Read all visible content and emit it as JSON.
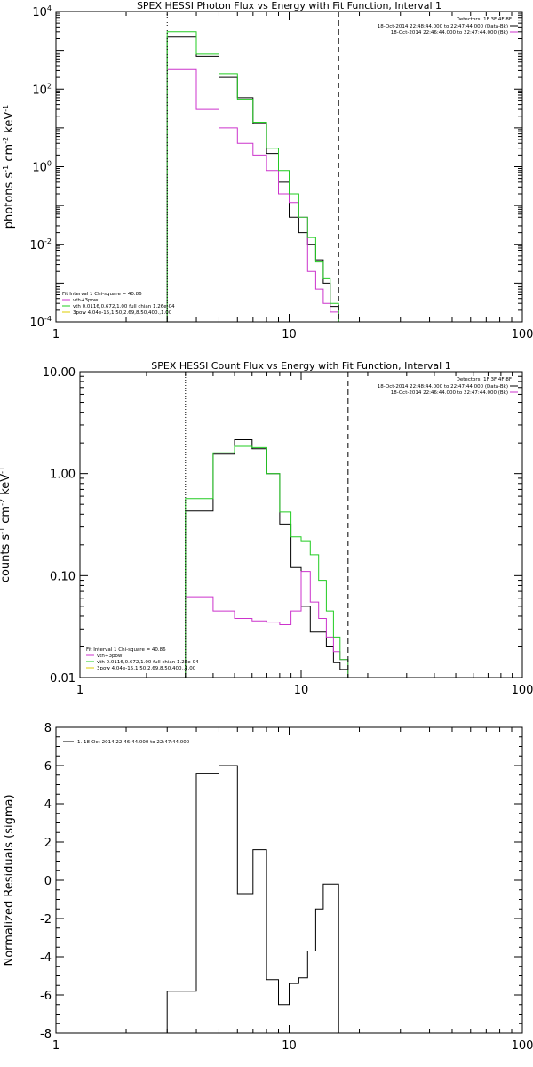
{
  "chart_data": [
    {
      "type": "line",
      "title": "SPEX HESSI Photon Flux vs Energy with Fit Function, Interval 1",
      "ylabel_parts": [
        "photons s",
        "-1",
        " cm",
        "-2",
        " keV",
        "-1"
      ],
      "xlabel": "",
      "xscale": "log",
      "yscale": "log",
      "xlim": [
        1,
        100
      ],
      "ylim": [
        0.0001,
        10000
      ],
      "xticks": [
        {
          "v": 1,
          "label": "1"
        },
        {
          "v": 10,
          "label": "10"
        },
        {
          "v": 100,
          "label": "100"
        }
      ],
      "yticks": [
        {
          "v": 0.0001,
          "base": "10",
          "exp": "-4"
        },
        {
          "v": 0.01,
          "base": "10",
          "exp": "-2"
        },
        {
          "v": 1,
          "base": "10",
          "exp": "0"
        },
        {
          "v": 100,
          "base": "10",
          "exp": "2"
        },
        {
          "v": 10000,
          "base": "10",
          "exp": "4"
        }
      ],
      "vlines": [
        {
          "x": 3.0,
          "style": "dotted"
        },
        {
          "x": 16.3,
          "style": "dashed"
        }
      ],
      "edges": [
        3.0,
        4.0,
        5.0,
        6.0,
        7.0,
        8.0,
        9.0,
        10.0,
        11.0,
        12.0,
        13.0,
        14.0,
        15.0,
        16.3
      ],
      "series": [
        {
          "name": "data",
          "color": "#000000",
          "values": [
            2200,
            700,
            200,
            60,
            13,
            2.2,
            0.4,
            0.05,
            0.02,
            0.01,
            0.004,
            0.001,
            0.00025
          ]
        },
        {
          "name": "vth+3pow",
          "color": "#cc33cc",
          "values": [
            320,
            30,
            10,
            4,
            2,
            0.8,
            0.2,
            0.12,
            0.05,
            0.002,
            0.0007,
            0.0003,
            0.00018
          ]
        },
        {
          "name": "vth",
          "color": "#22cc22",
          "values": [
            3000,
            800,
            250,
            55,
            14,
            3,
            0.8,
            0.2,
            0.05,
            0.015,
            0.0035,
            0.0013,
            0.0003
          ]
        }
      ],
      "legend_top": {
        "header": "Detectors: 1F 3F 4F 8F",
        "entries": [
          {
            "text": "18-Oct-2014 22:48:44.000 to 22:47:44.000 (Data-Bk)",
            "color": "#000000"
          },
          {
            "text": "18-Oct-2014 22:46:44.000 to 22:47:44.000 (Bk)",
            "color": "#cc33cc"
          }
        ]
      },
      "legend_bottom": {
        "header": "Fit Interval 1   Chi-square = 40.86",
        "entries": [
          {
            "text": "vth+3pow",
            "color": "#cc33cc"
          },
          {
            "text": "vth 0.0116,0.672,1.00  full chian 1.26e-04",
            "color": "#22cc22"
          },
          {
            "text": "3pow 4.04e-15,1.50,2.69,8.50,400.,1.00",
            "color": "#ddcc00"
          }
        ]
      }
    },
    {
      "type": "line",
      "title": "SPEX HESSI Count Flux vs Energy with Fit Function, Interval 1",
      "ylabel_parts": [
        "counts s",
        "-1",
        " cm",
        "-2",
        " keV",
        "-1"
      ],
      "xlabel": "",
      "xscale": "log",
      "yscale": "log",
      "xlim": [
        1,
        100
      ],
      "ylim": [
        0.01,
        10
      ],
      "xticks": [
        {
          "v": 1,
          "label": "1"
        },
        {
          "v": 10,
          "label": "10"
        },
        {
          "v": 100,
          "label": "100"
        }
      ],
      "yticks": [
        {
          "v": 0.01,
          "label": "0.01"
        },
        {
          "v": 0.1,
          "label": "0.10"
        },
        {
          "v": 1,
          "label": "1.00"
        },
        {
          "v": 10,
          "label": "10.00"
        }
      ],
      "vlines": [
        {
          "x": 3.0,
          "style": "dotted"
        },
        {
          "x": 16.3,
          "style": "dashed"
        }
      ],
      "edges": [
        3.0,
        4.0,
        5.0,
        6.0,
        7.0,
        8.0,
        9.0,
        10.0,
        11.0,
        12.0,
        13.0,
        14.0,
        15.0,
        16.3
      ],
      "series": [
        {
          "name": "data",
          "color": "#000000",
          "values": [
            0.43,
            1.55,
            2.15,
            1.75,
            1.0,
            0.32,
            0.12,
            0.05,
            0.028,
            0.028,
            0.02,
            0.014,
            0.012
          ]
        },
        {
          "name": "vth+3pow",
          "color": "#cc33cc",
          "values": [
            0.062,
            0.045,
            0.038,
            0.036,
            0.035,
            0.033,
            0.045,
            0.11,
            0.055,
            0.038,
            0.025,
            0.018,
            0.015
          ]
        },
        {
          "name": "vth",
          "color": "#22cc22",
          "values": [
            0.57,
            1.6,
            1.85,
            1.8,
            1.0,
            0.42,
            0.24,
            0.22,
            0.16,
            0.09,
            0.045,
            0.025,
            0.015
          ]
        }
      ],
      "legend_top": {
        "header": "Detectors: 1F 3F 4F 8F",
        "entries": [
          {
            "text": "18-Oct-2014 22:48:44.000 to 22:47:44.000 (Data-Bk)",
            "color": "#000000"
          },
          {
            "text": "18-Oct-2014 22:46:44.000 to 22:47:44.000 (Bk)",
            "color": "#cc33cc"
          }
        ]
      },
      "legend_bottom": {
        "header": "Fit Interval 1   Chi-square = 40.86",
        "entries": [
          {
            "text": "vth+3pow",
            "color": "#cc33cc"
          },
          {
            "text": "vth 0.0116,0.672,1.00  full chian 1.26e-04",
            "color": "#22cc22"
          },
          {
            "text": "3pow 4.04e-15,1.50,2.69,8.50,400.,1.00",
            "color": "#ddcc00"
          }
        ]
      }
    },
    {
      "type": "line",
      "title": "",
      "ylabel": "Normalized Residuals (sigma)",
      "xlabel": "",
      "xscale": "log",
      "yscale": "linear",
      "xlim": [
        1,
        100
      ],
      "ylim": [
        -8,
        8
      ],
      "xticks": [
        {
          "v": 1,
          "label": "1"
        },
        {
          "v": 10,
          "label": "10"
        },
        {
          "v": 100,
          "label": "100"
        }
      ],
      "yticks": [
        {
          "v": -8,
          "label": "-8"
        },
        {
          "v": -6,
          "label": "-6"
        },
        {
          "v": -4,
          "label": "-4"
        },
        {
          "v": -2,
          "label": "-2"
        },
        {
          "v": 0,
          "label": "0"
        },
        {
          "v": 2,
          "label": "2"
        },
        {
          "v": 4,
          "label": "4"
        },
        {
          "v": 6,
          "label": "6"
        },
        {
          "v": 8,
          "label": "8"
        }
      ],
      "vlines": [],
      "edges": [
        3.0,
        4.0,
        5.0,
        6.0,
        7.0,
        8.0,
        9.0,
        10.0,
        11.0,
        12.0,
        13.0,
        14.0,
        15.0,
        16.3
      ],
      "baseline": -8,
      "series": [
        {
          "name": "1. 18-Oct-2014 22:46:44.000 to 22:47:44.000",
          "color": "#000000",
          "values": [
            -5.8,
            5.6,
            6.0,
            -0.7,
            1.6,
            -5.2,
            -6.5,
            -5.4,
            -5.1,
            -3.7,
            -1.5,
            -0.2,
            -0.2
          ]
        }
      ],
      "legend_top_left": {
        "entries": [
          {
            "text": "1. 18-Oct-2014 22:46:44.000 to 22:47:44.000",
            "color": "#000000"
          }
        ]
      }
    }
  ]
}
